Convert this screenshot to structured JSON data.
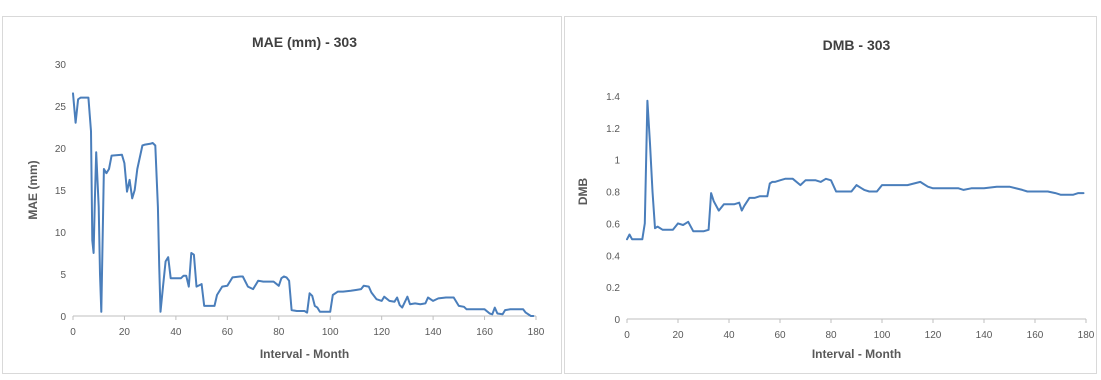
{
  "chart_data": [
    {
      "type": "line",
      "title": "MAE (mm) - 303",
      "xlabel": "Interval - Month",
      "ylabel": "MAE (mm)",
      "xlim": [
        0,
        180
      ],
      "ylim": [
        0,
        30
      ],
      "xticks": [
        0,
        20,
        40,
        60,
        80,
        100,
        120,
        140,
        160,
        180
      ],
      "yticks": [
        0,
        5,
        10,
        15,
        20,
        25,
        30
      ],
      "grid": false,
      "legend": "none",
      "line_color": "#4a7ebb",
      "series": [
        {
          "x": [
            0,
            1,
            2,
            3,
            6,
            7,
            7.5,
            8,
            8.5,
            9,
            10,
            10.5,
            11,
            12,
            13,
            14,
            15,
            19,
            20,
            21,
            22,
            23,
            24,
            25,
            27,
            28,
            30,
            31,
            32,
            33,
            33.5,
            34,
            35,
            36,
            37,
            38,
            42,
            43,
            44,
            45,
            46,
            47,
            48,
            50,
            51,
            55,
            56,
            58,
            60,
            62,
            65,
            66,
            68,
            70,
            72,
            74,
            76,
            78,
            80,
            81,
            82,
            83,
            84,
            85,
            87,
            88,
            90,
            91,
            92,
            93,
            94,
            95,
            96,
            98,
            100,
            101,
            103,
            105,
            108,
            110,
            112,
            113,
            115,
            116,
            118,
            120,
            121,
            123,
            125,
            126,
            127,
            128,
            130,
            131,
            133,
            135,
            137,
            138,
            140,
            142,
            145,
            148,
            150,
            152,
            153,
            155,
            158,
            160,
            162,
            163,
            164,
            165,
            167,
            168,
            170,
            172,
            174,
            175,
            176,
            178,
            179
          ],
          "values": [
            26.5,
            23,
            25.8,
            26,
            26,
            22,
            9,
            7.5,
            14,
            19.5,
            13,
            5,
            0.5,
            17.5,
            17,
            17.5,
            19.1,
            19.2,
            18.2,
            14.8,
            16.2,
            14,
            15,
            17.5,
            20.3,
            20.4,
            20.5,
            20.6,
            20.3,
            13,
            6,
            0.5,
            3.5,
            6.5,
            7,
            4.5,
            4.5,
            4.8,
            4.8,
            3.5,
            7.5,
            7.3,
            3.5,
            3.8,
            1.2,
            1.2,
            2.5,
            3.5,
            3.6,
            4.6,
            4.7,
            4.7,
            3.5,
            3.2,
            4.2,
            4.1,
            4.1,
            4.1,
            3.6,
            4.5,
            4.7,
            4.6,
            4.2,
            0.7,
            0.6,
            0.6,
            0.6,
            0.4,
            2.7,
            2.4,
            1.2,
            1,
            0.5,
            0.5,
            0.5,
            2.5,
            2.9,
            2.9,
            3,
            3.1,
            3.2,
            3.6,
            3.5,
            2.8,
            2,
            1.8,
            2.3,
            1.8,
            1.7,
            2.2,
            1.3,
            1,
            2.3,
            1.4,
            1.5,
            1.4,
            1.5,
            2.2,
            1.8,
            2.1,
            2.2,
            2.2,
            1.2,
            1.1,
            0.8,
            0.8,
            0.8,
            0.8,
            0.3,
            0.2,
            1,
            0.3,
            0.2,
            0.7,
            0.8,
            0.8,
            0.8,
            0.8,
            0.4,
            0,
            0
          ]
        }
      ]
    },
    {
      "type": "line",
      "title": "DMB - 303",
      "xlabel": "Interval - Month",
      "ylabel": "DMB",
      "xlim": [
        0,
        180
      ],
      "ylim": [
        0,
        1.6
      ],
      "xticks": [
        0,
        20,
        40,
        60,
        80,
        100,
        120,
        140,
        160,
        180
      ],
      "yticks": [
        0,
        0.2,
        0.4,
        0.6,
        0.8,
        1,
        1.2,
        1.4
      ],
      "yticklabels": [
        "0",
        "0.2",
        "0.4",
        "0.6",
        "0.8",
        "1",
        "1.2",
        "1.4"
      ],
      "grid": false,
      "legend": "none",
      "line_color": "#4a7ebb",
      "series": [
        {
          "x": [
            0,
            1,
            2,
            4,
            6,
            7,
            8,
            9,
            10,
            11,
            12,
            14,
            16,
            18,
            20,
            22,
            24,
            26,
            28,
            30,
            32,
            33,
            34,
            36,
            38,
            40,
            42,
            44,
            45,
            46,
            48,
            50,
            52,
            55,
            56,
            57,
            58,
            60,
            62,
            65,
            68,
            70,
            72,
            74,
            76,
            78,
            80,
            82,
            84,
            86,
            88,
            90,
            92,
            93,
            95,
            98,
            100,
            102,
            105,
            110,
            115,
            116,
            118,
            120,
            125,
            130,
            132,
            135,
            140,
            145,
            150,
            155,
            157,
            160,
            165,
            168,
            170,
            175,
            177,
            179
          ],
          "values": [
            0.5,
            0.53,
            0.5,
            0.5,
            0.5,
            0.6,
            1.37,
            1.1,
            0.8,
            0.57,
            0.58,
            0.56,
            0.56,
            0.56,
            0.6,
            0.59,
            0.61,
            0.55,
            0.55,
            0.55,
            0.56,
            0.79,
            0.74,
            0.68,
            0.72,
            0.72,
            0.72,
            0.73,
            0.68,
            0.71,
            0.76,
            0.76,
            0.77,
            0.77,
            0.85,
            0.86,
            0.86,
            0.87,
            0.88,
            0.88,
            0.84,
            0.87,
            0.87,
            0.87,
            0.86,
            0.88,
            0.87,
            0.8,
            0.8,
            0.8,
            0.8,
            0.84,
            0.82,
            0.81,
            0.8,
            0.8,
            0.84,
            0.84,
            0.84,
            0.84,
            0.86,
            0.85,
            0.83,
            0.82,
            0.82,
            0.82,
            0.81,
            0.82,
            0.82,
            0.83,
            0.83,
            0.81,
            0.8,
            0.8,
            0.8,
            0.79,
            0.78,
            0.78,
            0.79,
            0.79
          ]
        }
      ]
    }
  ]
}
